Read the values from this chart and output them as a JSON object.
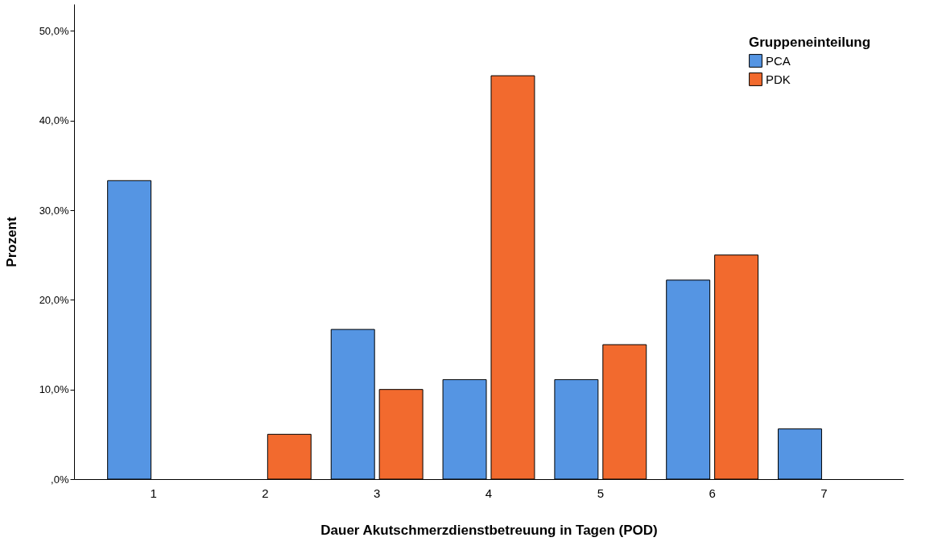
{
  "chart_data": {
    "type": "bar",
    "xlabel": "Dauer Akutschmerzdienstbetreuung in Tagen (POD)",
    "ylabel": "Prozent",
    "legend_title": "Gruppeneinteilung",
    "categories": [
      "1",
      "2",
      "3",
      "4",
      "5",
      "6",
      "7"
    ],
    "series": [
      {
        "name": "PCA",
        "color": "#5595e3",
        "values": [
          33.3,
          null,
          16.7,
          11.1,
          11.1,
          22.2,
          5.6
        ]
      },
      {
        "name": "PDK",
        "color": "#f26a2e",
        "values": [
          null,
          5.0,
          10.0,
          45.0,
          15.0,
          25.0,
          null
        ]
      }
    ],
    "ylim": [
      0,
      53
    ],
    "yticks": [
      {
        "value": 0,
        "label": ",0%"
      },
      {
        "value": 10,
        "label": "10,0%"
      },
      {
        "value": 20,
        "label": "20,0%"
      },
      {
        "value": 30,
        "label": "30,0%"
      },
      {
        "value": 40,
        "label": "40,0%"
      },
      {
        "value": 50,
        "label": "50,0%"
      }
    ],
    "grid": false,
    "legend": "top right"
  }
}
